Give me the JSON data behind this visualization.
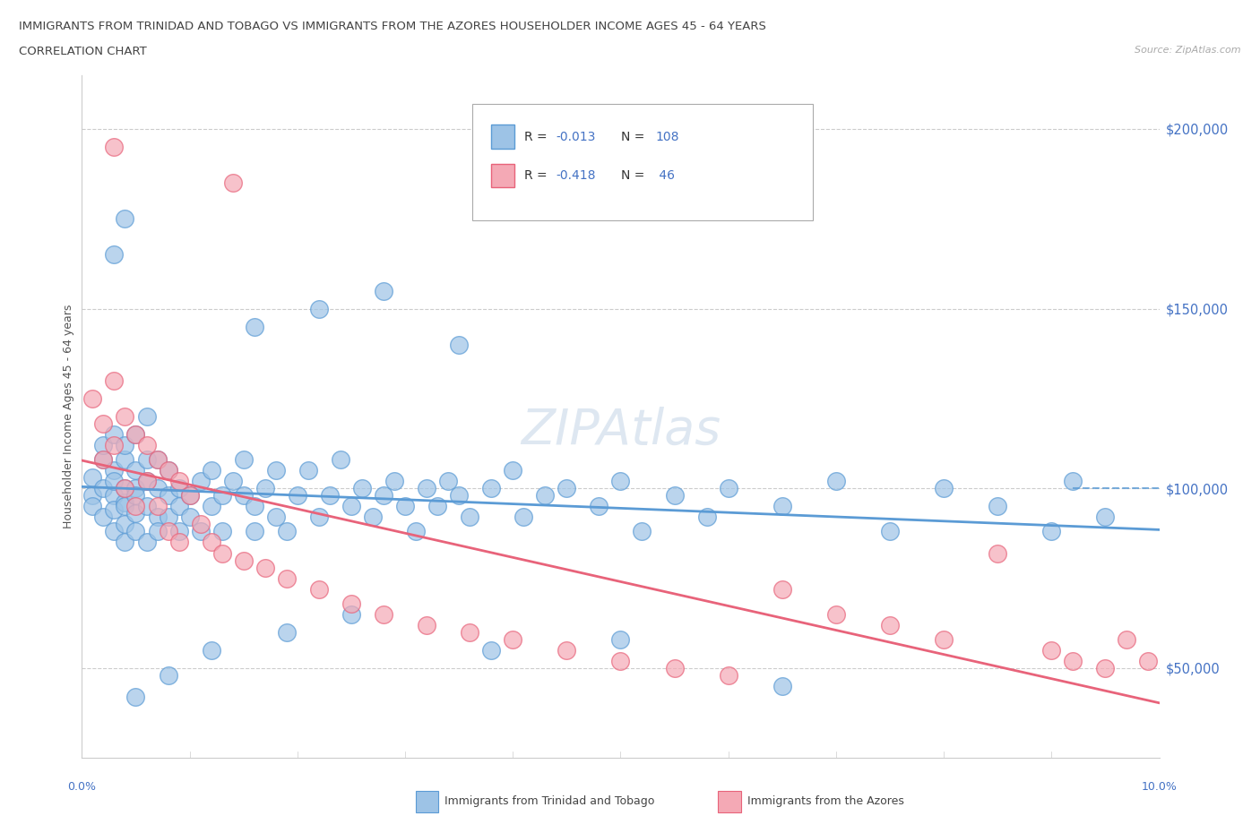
{
  "title_line1": "IMMIGRANTS FROM TRINIDAD AND TOBAGO VS IMMIGRANTS FROM THE AZORES HOUSEHOLDER INCOME AGES 45 - 64 YEARS",
  "title_line2": "CORRELATION CHART",
  "source": "Source: ZipAtlas.com",
  "ylabel": "Householder Income Ages 45 - 64 years",
  "yticks": [
    50000,
    100000,
    150000,
    200000
  ],
  "ytick_labels": [
    "$50,000",
    "$100,000",
    "$150,000",
    "$200,000"
  ],
  "xmin": 0.0,
  "xmax": 0.1,
  "ymin": 25000,
  "ymax": 215000,
  "trinidad_color": "#5b9bd5",
  "trinidad_fill": "#9dc3e6",
  "azores_color": "#e8637a",
  "azores_fill": "#f4a9b5",
  "r_trinidad": -0.013,
  "n_trinidad": 108,
  "r_azores": -0.418,
  "n_azores": 46,
  "legend_label_1": "Immigrants from Trinidad and Tobago",
  "legend_label_2": "Immigrants from the Azores",
  "watermark": "ZIPAtlas",
  "trinidad_scatter_x": [
    0.001,
    0.001,
    0.001,
    0.002,
    0.002,
    0.002,
    0.002,
    0.003,
    0.003,
    0.003,
    0.003,
    0.003,
    0.003,
    0.004,
    0.004,
    0.004,
    0.004,
    0.004,
    0.004,
    0.004,
    0.005,
    0.005,
    0.005,
    0.005,
    0.005,
    0.005,
    0.006,
    0.006,
    0.006,
    0.006,
    0.006,
    0.007,
    0.007,
    0.007,
    0.007,
    0.008,
    0.008,
    0.008,
    0.009,
    0.009,
    0.009,
    0.01,
    0.01,
    0.011,
    0.011,
    0.012,
    0.012,
    0.013,
    0.013,
    0.014,
    0.015,
    0.015,
    0.016,
    0.016,
    0.017,
    0.018,
    0.018,
    0.019,
    0.02,
    0.021,
    0.022,
    0.023,
    0.024,
    0.025,
    0.026,
    0.027,
    0.028,
    0.029,
    0.03,
    0.031,
    0.032,
    0.033,
    0.034,
    0.035,
    0.036,
    0.038,
    0.04,
    0.041,
    0.043,
    0.045,
    0.048,
    0.05,
    0.052,
    0.055,
    0.058,
    0.06,
    0.065,
    0.07,
    0.075,
    0.08,
    0.085,
    0.09,
    0.092,
    0.095,
    0.003,
    0.004,
    0.035,
    0.028,
    0.022,
    0.016,
    0.012,
    0.008,
    0.005,
    0.019,
    0.025,
    0.038,
    0.05,
    0.065
  ],
  "trinidad_scatter_y": [
    98000,
    103000,
    95000,
    100000,
    108000,
    92000,
    112000,
    98000,
    105000,
    88000,
    94000,
    102000,
    115000,
    96000,
    100000,
    90000,
    108000,
    85000,
    112000,
    95000,
    100000,
    93000,
    105000,
    88000,
    115000,
    98000,
    95000,
    102000,
    108000,
    85000,
    120000,
    92000,
    100000,
    108000,
    88000,
    98000,
    105000,
    92000,
    95000,
    100000,
    88000,
    98000,
    92000,
    102000,
    88000,
    95000,
    105000,
    98000,
    88000,
    102000,
    98000,
    108000,
    95000,
    88000,
    100000,
    92000,
    105000,
    88000,
    98000,
    105000,
    92000,
    98000,
    108000,
    95000,
    100000,
    92000,
    98000,
    102000,
    95000,
    88000,
    100000,
    95000,
    102000,
    98000,
    92000,
    100000,
    105000,
    92000,
    98000,
    100000,
    95000,
    102000,
    88000,
    98000,
    92000,
    100000,
    95000,
    102000,
    88000,
    100000,
    95000,
    88000,
    102000,
    92000,
    165000,
    175000,
    140000,
    155000,
    150000,
    145000,
    55000,
    48000,
    42000,
    60000,
    65000,
    55000,
    58000,
    45000
  ],
  "azores_scatter_x": [
    0.001,
    0.002,
    0.002,
    0.003,
    0.003,
    0.004,
    0.004,
    0.005,
    0.005,
    0.006,
    0.006,
    0.007,
    0.007,
    0.008,
    0.008,
    0.009,
    0.009,
    0.01,
    0.011,
    0.012,
    0.013,
    0.015,
    0.017,
    0.019,
    0.022,
    0.025,
    0.028,
    0.032,
    0.036,
    0.04,
    0.045,
    0.05,
    0.055,
    0.06,
    0.065,
    0.07,
    0.075,
    0.08,
    0.085,
    0.09,
    0.092,
    0.095,
    0.097,
    0.099,
    0.003,
    0.014
  ],
  "azores_scatter_y": [
    125000,
    118000,
    108000,
    130000,
    112000,
    120000,
    100000,
    115000,
    95000,
    112000,
    102000,
    108000,
    95000,
    105000,
    88000,
    102000,
    85000,
    98000,
    90000,
    85000,
    82000,
    80000,
    78000,
    75000,
    72000,
    68000,
    65000,
    62000,
    60000,
    58000,
    55000,
    52000,
    50000,
    48000,
    72000,
    65000,
    62000,
    58000,
    82000,
    55000,
    52000,
    50000,
    58000,
    52000,
    195000,
    185000
  ]
}
